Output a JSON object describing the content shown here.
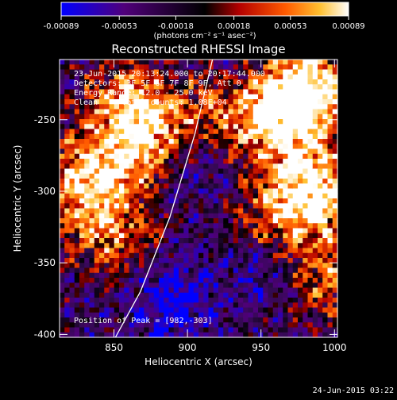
{
  "chart_data": {
    "type": "heatmap",
    "title": "Reconstructed RHESSI Image",
    "xlabel": "Heliocentric X (arcsec)",
    "ylabel": "Heliocentric Y (arcsec)",
    "xlim": [
      813,
      1002
    ],
    "ylim": [
      -402,
      -208
    ],
    "x_ticks": [
      850,
      900,
      950,
      1000
    ],
    "x_tick_labels": [
      "850",
      "900",
      "950",
      "1000"
    ],
    "y_ticks": [
      -250,
      -300,
      -350,
      -400
    ],
    "y_tick_labels": [
      "-250",
      "-300",
      "-350",
      "-400"
    ],
    "colorbar": {
      "range": [
        -0.00089,
        0.00089
      ],
      "ticks": [
        -0.00089,
        -0.00053,
        -0.00018,
        0.00018,
        0.00053,
        0.00089
      ],
      "tick_labels": [
        "-0.00089",
        "-0.00053",
        "-0.00018",
        "0.00018",
        "0.00053",
        "0.00089"
      ],
      "units_label": "(photons cm⁻² s⁻¹ asec⁻²)",
      "colormap": [
        "#0000ff",
        "#50007a",
        "#000000",
        "#b40000",
        "#ff5a00",
        "#ffc030",
        "#ffffff"
      ]
    },
    "annotations": [
      "23-Jun-2015 20:13:24.000 to 20:17:44.000",
      "Detectors: 3F 5F 6F 7F 8F 9F, Att 0",
      "Energy Range: 12.0 - 25.0 keV",
      "Clean     Total counts: 1.08E+04"
    ],
    "peak_label": "Position of Peak = [982,-303]",
    "peak": [
      982,
      -303
    ],
    "limb": [
      [
        917,
        -208
      ],
      [
        905,
        -260
      ],
      [
        888,
        -318
      ],
      [
        868,
        -370
      ],
      [
        851,
        -402
      ]
    ],
    "hot_regions": [
      {
        "x": 980,
        "y": -230,
        "w": 1.0
      },
      {
        "x": 985,
        "y": -300,
        "w": 0.9
      },
      {
        "x": 960,
        "y": -255,
        "w": 0.55
      },
      {
        "x": 835,
        "y": -290,
        "w": 0.75
      },
      {
        "x": 860,
        "y": -240,
        "w": 0.7
      },
      {
        "x": 880,
        "y": -270,
        "w": 0.55
      },
      {
        "x": 845,
        "y": -330,
        "w": 0.5
      },
      {
        "x": 925,
        "y": -235,
        "w": 0.45
      },
      {
        "x": 955,
        "y": -330,
        "w": 0.4
      },
      {
        "x": 995,
        "y": -360,
        "w": 0.45
      }
    ],
    "cold_regions": [
      {
        "x": 900,
        "y": -280,
        "w": 0.6
      },
      {
        "x": 950,
        "y": -350,
        "w": 0.7
      },
      {
        "x": 890,
        "y": -375,
        "w": 0.75
      },
      {
        "x": 930,
        "y": -215,
        "w": 0.5
      }
    ]
  },
  "footer": {
    "date": "24-Jun-2015 03:22"
  }
}
